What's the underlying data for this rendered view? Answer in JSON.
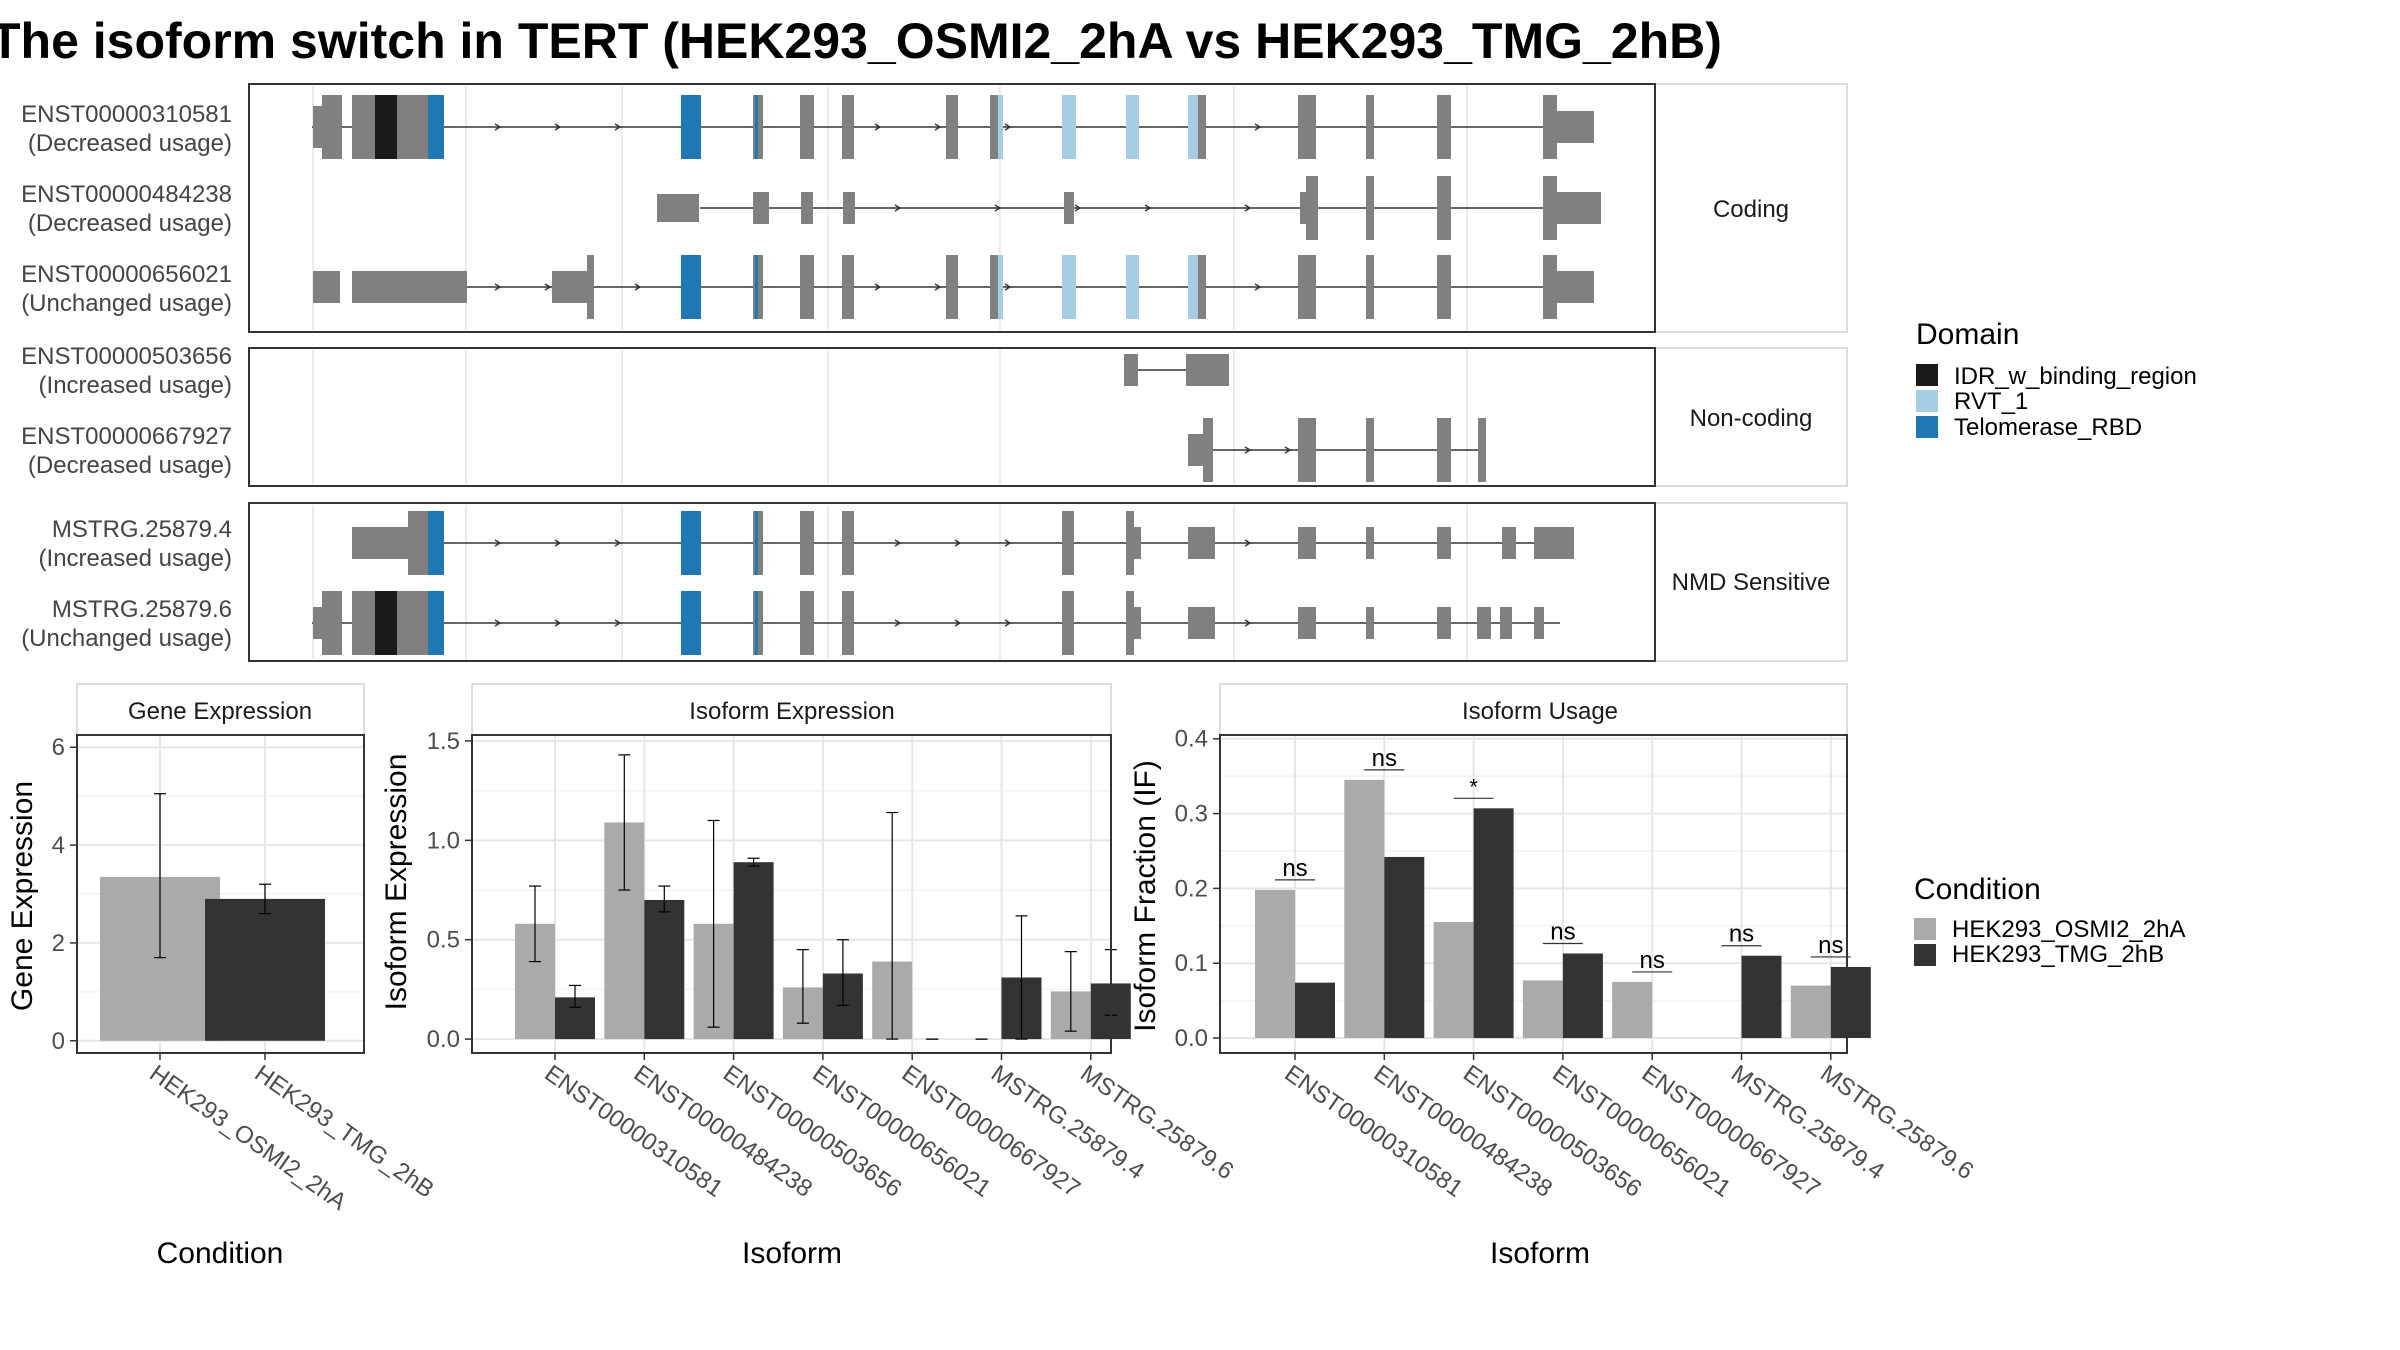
{
  "title": "The isoform switch in TERT (HEK293_OSMI2_2hA vs HEK293_TMG_2hB)",
  "colors": {
    "exon": "#808080",
    "idr": "#1a1a1a",
    "rvt": "#a6cee3",
    "rbd": "#1f78b4",
    "cond_a": "#aaaaaa",
    "cond_b": "#333333"
  },
  "domain_legend": {
    "title": "Domain",
    "items": [
      {
        "label": "IDR_w_binding_region",
        "color": "#1a1a1a"
      },
      {
        "label": "RVT_1",
        "color": "#a6cee3"
      },
      {
        "label": "Telomerase_RBD",
        "color": "#1f78b4"
      }
    ]
  },
  "condition_legend": {
    "title": "Condition",
    "items": [
      {
        "label": "HEK293_OSMI2_2hA",
        "color": "#aaaaaa"
      },
      {
        "label": "HEK293_TMG_2hB",
        "color": "#333333"
      }
    ]
  },
  "transcript_groups": [
    {
      "label": "Coding",
      "transcripts": [
        {
          "id": "ENST00000310581",
          "usage": "(Decreased usage)"
        },
        {
          "id": "ENST00000484238",
          "usage": "(Decreased usage)"
        },
        {
          "id": "ENST00000656021",
          "usage": "(Unchanged usage)"
        }
      ]
    },
    {
      "label": "Non-coding",
      "transcripts": [
        {
          "id": "ENST00000503656",
          "usage": "(Increased usage)"
        },
        {
          "id": "ENST00000667927",
          "usage": "(Decreased usage)"
        }
      ]
    },
    {
      "label": "NMD Sensitive",
      "transcripts": [
        {
          "id": "MSTRG.25879.4",
          "usage": "(Increased usage)"
        },
        {
          "id": "MSTRG.25879.6",
          "usage": "(Unchanged usage)"
        }
      ]
    }
  ],
  "chart_data": [
    {
      "type": "bar",
      "title": "Gene Expression",
      "xlabel": "Condition",
      "ylabel": "Gene Expression",
      "categories": [
        "HEK293_OSMI2_2hA",
        "HEK293_TMG_2hB"
      ],
      "values": [
        3.35,
        2.9
      ],
      "error_low": [
        1.7,
        2.6
      ],
      "error_high": [
        5.05,
        3.2
      ],
      "yticks": [
        "0",
        "2",
        "4",
        "6"
      ],
      "ylim": [
        -0.25,
        6.25
      ],
      "grid": true
    },
    {
      "type": "bar",
      "title": "Isoform Expression",
      "xlabel": "Isoform",
      "ylabel": "Isoform Expression",
      "categories": [
        "ENST00000310581",
        "ENST00000484238",
        "ENST00000503656",
        "ENST00000656021",
        "ENST00000667927",
        "MSTRG.25879.4",
        "MSTRG.25879.6"
      ],
      "series": [
        {
          "name": "HEK293_OSMI2_2hA",
          "values": [
            0.58,
            1.09,
            0.58,
            0.26,
            0.39,
            0.0,
            0.24
          ],
          "error_low": [
            0.39,
            0.75,
            0.06,
            0.08,
            0.0,
            0.0,
            0.04
          ],
          "error_high": [
            0.77,
            1.43,
            1.1,
            0.45,
            1.14,
            0.0,
            0.44
          ]
        },
        {
          "name": "HEK293_TMG_2hB",
          "values": [
            0.21,
            0.7,
            0.89,
            0.33,
            0.0,
            0.31,
            0.28
          ],
          "error_low": [
            0.16,
            0.64,
            0.87,
            0.17,
            0.0,
            0.0,
            0.12
          ],
          "error_high": [
            0.27,
            0.77,
            0.91,
            0.5,
            0.0,
            0.62,
            0.45
          ]
        }
      ],
      "yticks": [
        "0.0",
        "0.5",
        "1.0",
        "1.5"
      ],
      "ylim": [
        -0.07,
        1.53
      ],
      "grid": true
    },
    {
      "type": "bar",
      "title": "Isoform Usage",
      "xlabel": "Isoform",
      "ylabel": "Isoform Fraction (IF)",
      "categories": [
        "ENST00000310581",
        "ENST00000484238",
        "ENST00000503656",
        "ENST00000656021",
        "ENST00000667927",
        "MSTRG.25879.4",
        "MSTRG.25879.6"
      ],
      "series": [
        {
          "name": "HEK293_OSMI2_2hA",
          "values": [
            0.198,
            0.345,
            0.155,
            0.077,
            0.075,
            0.0,
            0.07
          ]
        },
        {
          "name": "HEK293_TMG_2hB",
          "values": [
            0.074,
            0.242,
            0.307,
            0.113,
            0.0,
            0.11,
            0.095
          ]
        }
      ],
      "significance": [
        "ns",
        "ns",
        "*",
        "ns",
        "ns",
        "ns",
        "ns"
      ],
      "yticks": [
        "0.0",
        "0.1",
        "0.2",
        "0.3",
        "0.4"
      ],
      "ylim": [
        -0.02,
        0.405
      ],
      "grid": true
    }
  ]
}
